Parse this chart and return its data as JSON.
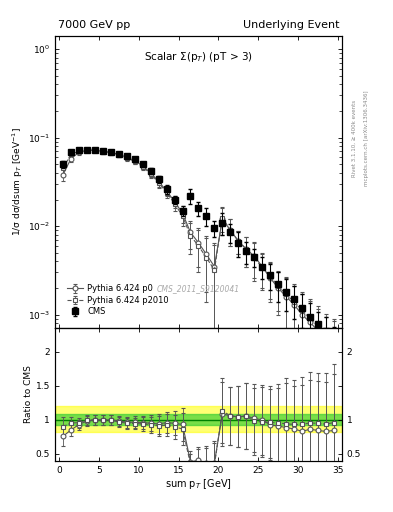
{
  "title_left": "7000 GeV pp",
  "title_right": "Underlying Event",
  "annotation": "Scalar $\\Sigma$(p$_T$) (pT > 3)",
  "watermark": "CMS_2011_S9120041",
  "right_label1": "Rivet 3.1.10, ≥ 400k events",
  "right_label2": "mcplots.cern.ch [arXiv:1306.3436]",
  "xlabel": "sum p$_T$ [GeV]",
  "ylabel": "1/σ dσ/dsum p$_T$ [GeV$^{-1}$]",
  "ylabel_ratio": "Ratio to CMS",
  "ylim_main_log": [
    -3.15,
    0.15
  ],
  "ylim_ratio": [
    0.4,
    2.35
  ],
  "xlim": [
    -0.5,
    35.5
  ],
  "cms_x": [
    0.5,
    1.5,
    2.5,
    3.5,
    4.5,
    5.5,
    6.5,
    7.5,
    8.5,
    9.5,
    10.5,
    11.5,
    12.5,
    13.5,
    14.5,
    15.5,
    16.5,
    17.5,
    18.5,
    19.5,
    20.5,
    21.5,
    22.5,
    23.5,
    24.5,
    25.5,
    26.5,
    27.5,
    28.5,
    29.5,
    30.5,
    31.5,
    32.5,
    33.5,
    34.5
  ],
  "cms_y": [
    0.05,
    0.068,
    0.073,
    0.073,
    0.072,
    0.07,
    0.068,
    0.066,
    0.062,
    0.057,
    0.05,
    0.042,
    0.034,
    0.026,
    0.02,
    0.015,
    0.022,
    0.016,
    0.013,
    0.0095,
    0.011,
    0.0085,
    0.0065,
    0.0052,
    0.0045,
    0.0035,
    0.0028,
    0.0022,
    0.0018,
    0.0015,
    0.0012,
    0.00095,
    0.00078,
    0.00065,
    0.00052
  ],
  "cms_yerr": [
    0.005,
    0.004,
    0.004,
    0.004,
    0.003,
    0.003,
    0.003,
    0.003,
    0.003,
    0.003,
    0.003,
    0.003,
    0.003,
    0.003,
    0.002,
    0.002,
    0.004,
    0.003,
    0.003,
    0.002,
    0.003,
    0.002,
    0.002,
    0.0015,
    0.001,
    0.001,
    0.0009,
    0.0008,
    0.0007,
    0.0006,
    0.0005,
    0.0004,
    0.0003,
    0.0003,
    0.0002
  ],
  "p0_x": [
    0.5,
    1.5,
    2.5,
    3.5,
    4.5,
    5.5,
    6.5,
    7.5,
    8.5,
    9.5,
    10.5,
    11.5,
    12.5,
    13.5,
    14.5,
    15.5,
    16.5,
    17.5,
    18.5,
    19.5,
    20.5,
    21.5,
    22.5,
    23.5,
    24.5,
    25.5,
    26.5,
    27.5,
    28.5,
    29.5,
    30.5,
    31.5,
    32.5,
    33.5,
    34.5
  ],
  "p0_y": [
    0.038,
    0.058,
    0.068,
    0.072,
    0.072,
    0.07,
    0.068,
    0.065,
    0.06,
    0.055,
    0.048,
    0.04,
    0.032,
    0.025,
    0.019,
    0.014,
    0.0085,
    0.0065,
    0.0048,
    0.0035,
    0.012,
    0.009,
    0.0068,
    0.0055,
    0.0046,
    0.0035,
    0.0026,
    0.002,
    0.0016,
    0.0013,
    0.001,
    0.00082,
    0.00066,
    0.00054,
    0.00044
  ],
  "p0_yerr": [
    0.006,
    0.005,
    0.004,
    0.004,
    0.004,
    0.004,
    0.004,
    0.004,
    0.004,
    0.004,
    0.004,
    0.004,
    0.004,
    0.003,
    0.003,
    0.003,
    0.003,
    0.003,
    0.003,
    0.003,
    0.004,
    0.003,
    0.002,
    0.002,
    0.002,
    0.0015,
    0.0012,
    0.001,
    0.001,
    0.0008,
    0.0007,
    0.0006,
    0.0005,
    0.0004,
    0.0004
  ],
  "p2010_x": [
    0.5,
    1.5,
    2.5,
    3.5,
    4.5,
    5.5,
    6.5,
    7.5,
    8.5,
    9.5,
    10.5,
    11.5,
    12.5,
    13.5,
    14.5,
    15.5,
    16.5,
    17.5,
    18.5,
    19.5,
    20.5,
    21.5,
    22.5,
    23.5,
    24.5,
    25.5,
    26.5,
    27.5,
    28.5,
    29.5,
    30.5,
    31.5,
    32.5,
    33.5,
    34.5
  ],
  "p2010_y": [
    0.045,
    0.065,
    0.07,
    0.073,
    0.072,
    0.07,
    0.068,
    0.064,
    0.059,
    0.054,
    0.047,
    0.039,
    0.031,
    0.024,
    0.018,
    0.013,
    0.0078,
    0.006,
    0.0044,
    0.0032,
    0.0125,
    0.009,
    0.0068,
    0.0055,
    0.0044,
    0.0034,
    0.0027,
    0.0021,
    0.0017,
    0.0014,
    0.00112,
    0.00091,
    0.00074,
    0.00061,
    0.0005
  ],
  "p2010_yerr": [
    0.006,
    0.005,
    0.004,
    0.004,
    0.004,
    0.004,
    0.004,
    0.004,
    0.004,
    0.004,
    0.004,
    0.004,
    0.004,
    0.003,
    0.003,
    0.003,
    0.003,
    0.003,
    0.003,
    0.003,
    0.004,
    0.003,
    0.002,
    0.002,
    0.002,
    0.0015,
    0.0012,
    0.001,
    0.001,
    0.0008,
    0.0007,
    0.0006,
    0.0005,
    0.0004,
    0.0004
  ],
  "legend_labels": [
    "CMS",
    "Pythia 6.424 p0",
    "Pythia 6.424 p2010"
  ],
  "band_yellow": [
    0.82,
    1.2
  ],
  "band_green": [
    0.92,
    1.08
  ]
}
